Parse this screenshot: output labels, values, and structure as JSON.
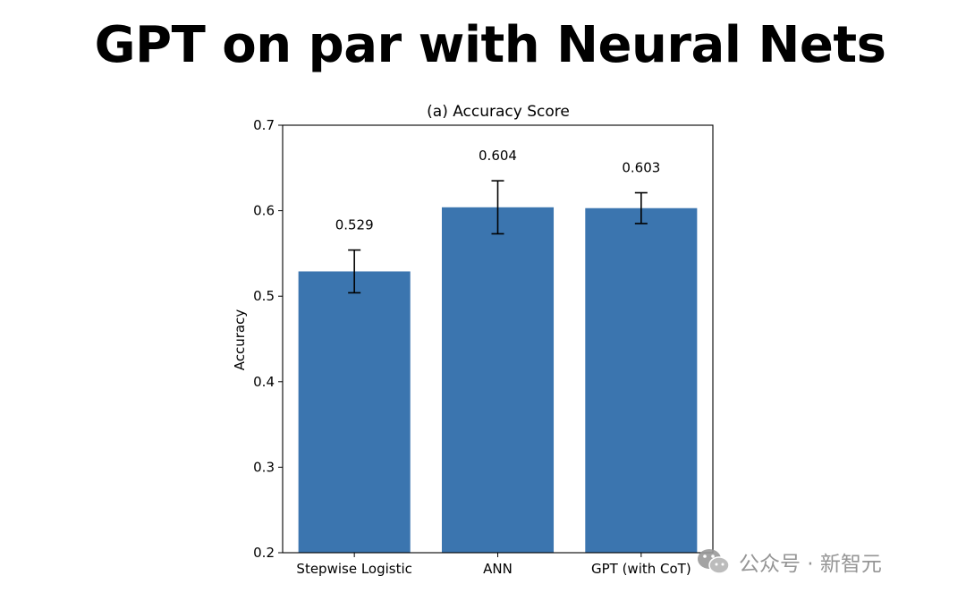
{
  "slide": {
    "title": "GPT on par with Neural Nets"
  },
  "watermark": {
    "text": "公众号 · 新智元",
    "icon": "wechat-icon"
  },
  "chart_data": {
    "type": "bar",
    "title": "(a) Accuracy Score",
    "xlabel": "",
    "ylabel": "Accuracy",
    "categories": [
      "Stepwise Logistic",
      "ANN",
      "GPT (with CoT)"
    ],
    "values": [
      0.529,
      0.604,
      0.603
    ],
    "value_labels": [
      "0.529",
      "0.604",
      "0.603"
    ],
    "error": [
      0.025,
      0.031,
      0.018
    ],
    "ylim": [
      0.2,
      0.7
    ],
    "yticks": [
      0.2,
      0.3,
      0.4,
      0.5,
      0.6,
      0.7
    ],
    "ytick_labels": [
      "0.2",
      "0.3",
      "0.4",
      "0.5",
      "0.6",
      "0.7"
    ],
    "grid": false,
    "bar_color": "#3b75af",
    "errorbar_color": "#000000"
  }
}
